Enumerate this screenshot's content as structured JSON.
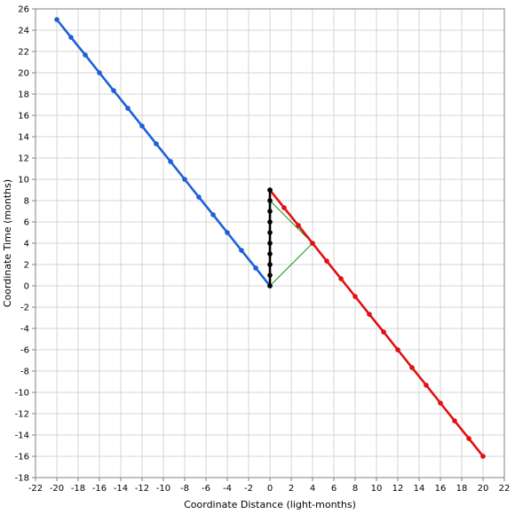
{
  "chart_data": {
    "type": "line",
    "title": "",
    "xlabel": "Coordinate Distance (light-months)",
    "ylabel": "Coordinate Time (months)",
    "xlim": [
      -22,
      22
    ],
    "ylim": [
      -18,
      26
    ],
    "x_ticks": [
      -22,
      -20,
      -18,
      -16,
      -14,
      -12,
      -10,
      -8,
      -6,
      -4,
      -2,
      0,
      2,
      4,
      6,
      8,
      10,
      12,
      14,
      16,
      18,
      20,
      22
    ],
    "y_ticks": [
      -18,
      -16,
      -14,
      -12,
      -10,
      -8,
      -6,
      -4,
      -2,
      0,
      2,
      4,
      6,
      8,
      10,
      12,
      14,
      16,
      18,
      20,
      22,
      24,
      26
    ],
    "grid": true,
    "legend": "none",
    "series": [
      {
        "color": "#1f5fd6",
        "markers": true,
        "points": [
          [
            -20,
            25
          ],
          [
            -18.67,
            23.33
          ],
          [
            -17.33,
            21.67
          ],
          [
            -16,
            20
          ],
          [
            -14.67,
            18.33
          ],
          [
            -13.33,
            16.67
          ],
          [
            -12,
            15
          ],
          [
            -10.67,
            13.33
          ],
          [
            -9.33,
            11.67
          ],
          [
            -8,
            10
          ],
          [
            -6.67,
            8.33
          ],
          [
            -5.33,
            6.67
          ],
          [
            -4,
            5
          ],
          [
            -2.67,
            3.33
          ],
          [
            -1.33,
            1.67
          ],
          [
            0,
            0
          ]
        ]
      },
      {
        "color": "#e01010",
        "markers": true,
        "points": [
          [
            0,
            9
          ],
          [
            1.33,
            7.33
          ],
          [
            2.67,
            5.67
          ],
          [
            4,
            4
          ],
          [
            5.33,
            2.33
          ],
          [
            6.67,
            0.67
          ],
          [
            8,
            -1
          ],
          [
            9.33,
            -2.67
          ],
          [
            10.67,
            -4.33
          ],
          [
            12,
            -6
          ],
          [
            13.33,
            -7.67
          ],
          [
            14.67,
            -9.33
          ],
          [
            16,
            -11
          ],
          [
            17.33,
            -12.67
          ],
          [
            18.67,
            -14.33
          ],
          [
            20,
            -16
          ]
        ]
      },
      {
        "color": "#000000",
        "markers": true,
        "points": [
          [
            0,
            0
          ],
          [
            0,
            1
          ],
          [
            0,
            2
          ],
          [
            0,
            3
          ],
          [
            0,
            4
          ],
          [
            0,
            5
          ],
          [
            0,
            6
          ],
          [
            0,
            7
          ],
          [
            0,
            8
          ],
          [
            0,
            9
          ]
        ]
      },
      {
        "color": "#1a8f1a",
        "markers": false,
        "points": [
          [
            0,
            0
          ],
          [
            4,
            4
          ],
          [
            0,
            8
          ]
        ]
      }
    ]
  }
}
